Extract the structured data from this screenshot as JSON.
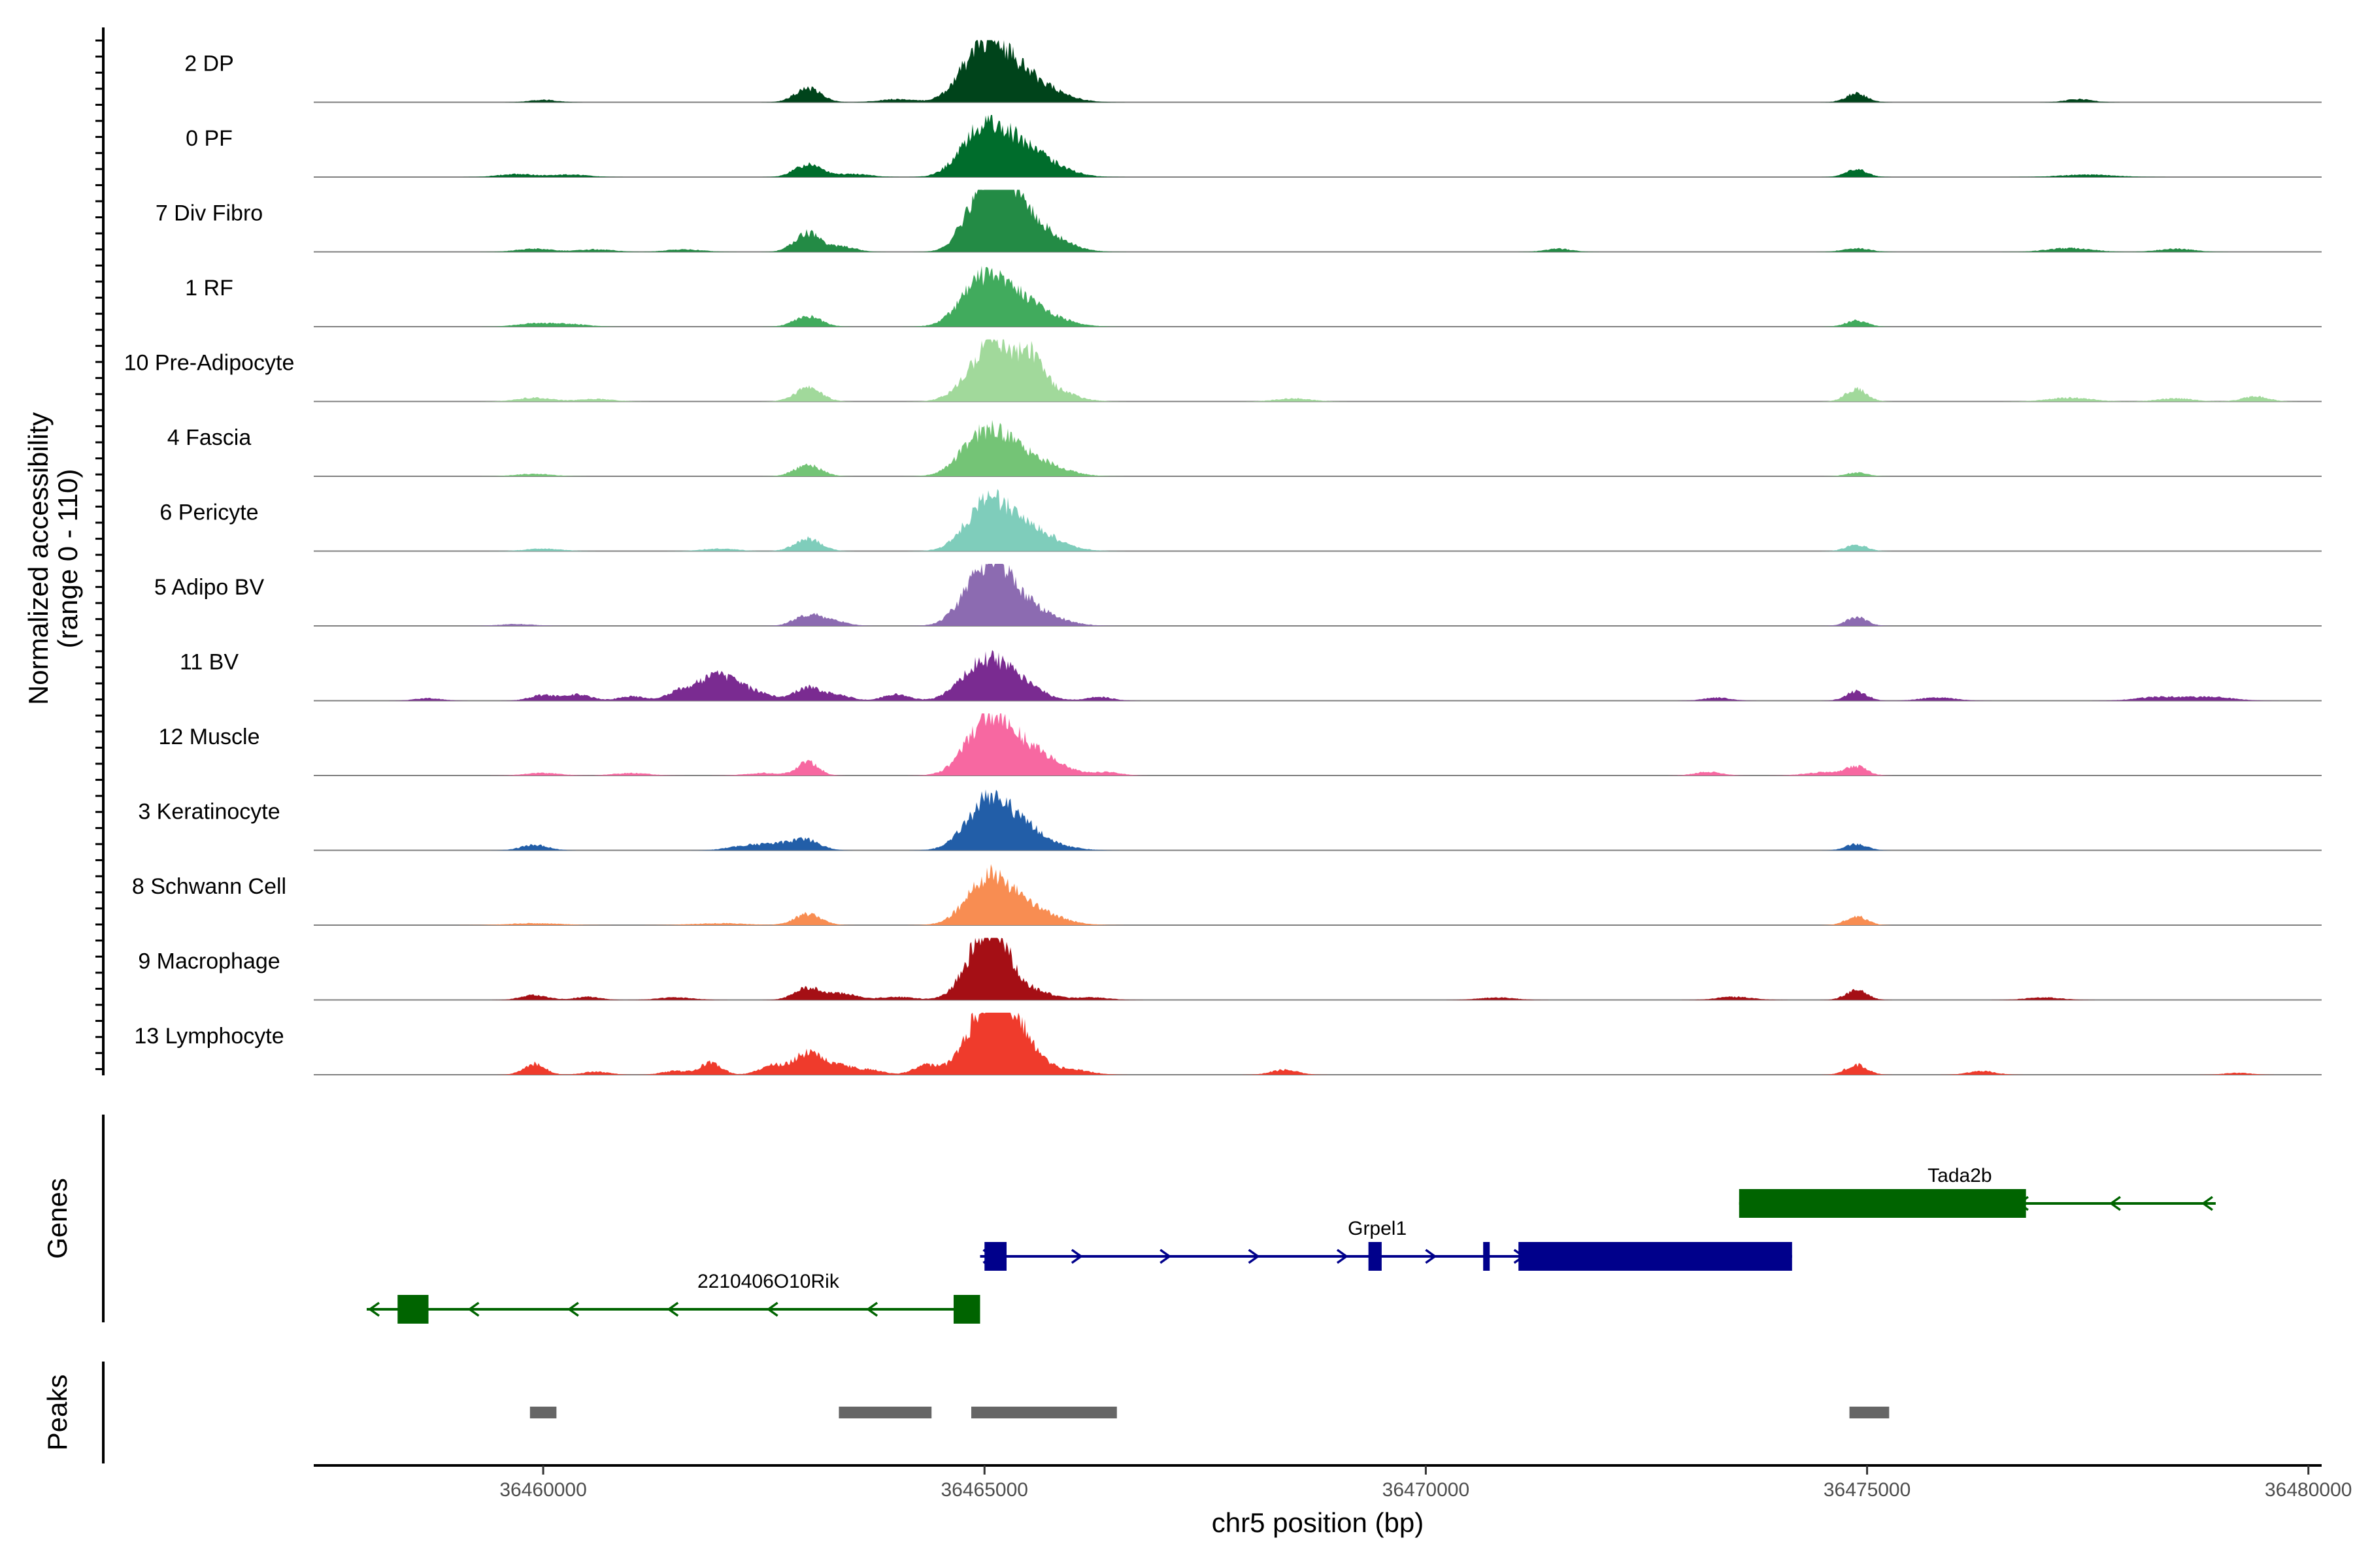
{
  "chart_data": {
    "type": "area",
    "title": "",
    "chromosome": "chr5",
    "xlabel": "chr5 position (bp)",
    "ylabel_line1": "Normalized accessibility",
    "ylabel_line2": "(range 0 - 110)",
    "y_range": [
      0,
      110
    ],
    "x_range": [
      36457400,
      36480150
    ],
    "x_ticks": [
      36460000,
      36465000,
      36470000,
      36475000,
      36480000
    ],
    "x_tick_labels": [
      "36460000",
      "36465000",
      "36470000",
      "36475000",
      "36480000"
    ],
    "tracks": [
      {
        "label": "2 DP",
        "color": "#00441b",
        "peaks": [
          [
            36460000,
            0.04,
            150
          ],
          [
            36463000,
            0.22,
            150
          ],
          [
            36464000,
            0.05,
            200
          ],
          [
            36464900,
            0.62,
            220
          ],
          [
            36465150,
            0.5,
            200
          ],
          [
            36465450,
            0.32,
            220
          ],
          [
            36465750,
            0.13,
            250
          ],
          [
            36474880,
            0.14,
            120
          ],
          [
            36477400,
            0.05,
            150
          ]
        ]
      },
      {
        "label": "0 PF",
        "color": "#006d2c",
        "peaks": [
          [
            36459700,
            0.05,
            200
          ],
          [
            36460300,
            0.04,
            200
          ],
          [
            36463000,
            0.2,
            150
          ],
          [
            36463500,
            0.05,
            200
          ],
          [
            36464900,
            0.55,
            220
          ],
          [
            36465150,
            0.45,
            200
          ],
          [
            36465450,
            0.33,
            220
          ],
          [
            36465750,
            0.15,
            250
          ],
          [
            36474880,
            0.12,
            120
          ],
          [
            36477500,
            0.04,
            300
          ]
        ]
      },
      {
        "label": "7 Div Fibro",
        "color": "#238b45",
        "peaks": [
          [
            36459900,
            0.05,
            200
          ],
          [
            36460600,
            0.04,
            200
          ],
          [
            36461600,
            0.04,
            200
          ],
          [
            36463000,
            0.3,
            150
          ],
          [
            36463400,
            0.08,
            150
          ],
          [
            36464950,
            0.72,
            200
          ],
          [
            36465200,
            0.78,
            200
          ],
          [
            36465450,
            0.38,
            220
          ],
          [
            36465750,
            0.18,
            250
          ],
          [
            36471500,
            0.05,
            150
          ],
          [
            36474880,
            0.06,
            150
          ],
          [
            36477300,
            0.06,
            250
          ],
          [
            36478500,
            0.05,
            200
          ]
        ]
      },
      {
        "label": "1 RF",
        "color": "#41ab5d",
        "peaks": [
          [
            36459900,
            0.05,
            200
          ],
          [
            36460300,
            0.04,
            200
          ],
          [
            36463000,
            0.17,
            150
          ],
          [
            36464900,
            0.52,
            220
          ],
          [
            36465150,
            0.45,
            200
          ],
          [
            36465450,
            0.28,
            220
          ],
          [
            36465750,
            0.12,
            250
          ],
          [
            36474880,
            0.1,
            120
          ]
        ]
      },
      {
        "label": "10 Pre-Adipocyte",
        "color": "#a1d99b",
        "peaks": [
          [
            36459900,
            0.06,
            200
          ],
          [
            36460600,
            0.04,
            200
          ],
          [
            36463000,
            0.22,
            150
          ],
          [
            36464950,
            0.55,
            220
          ],
          [
            36465150,
            0.6,
            150
          ],
          [
            36465500,
            0.66,
            150
          ],
          [
            36465750,
            0.18,
            250
          ],
          [
            36468500,
            0.05,
            200
          ],
          [
            36474880,
            0.2,
            120
          ],
          [
            36477300,
            0.06,
            250
          ],
          [
            36478500,
            0.05,
            200
          ],
          [
            36479400,
            0.08,
            150
          ]
        ]
      },
      {
        "label": "4 Fascia",
        "color": "#74c476",
        "peaks": [
          [
            36459900,
            0.04,
            200
          ],
          [
            36463000,
            0.18,
            150
          ],
          [
            36464900,
            0.46,
            220
          ],
          [
            36465150,
            0.4,
            200
          ],
          [
            36465450,
            0.25,
            220
          ],
          [
            36465750,
            0.12,
            250
          ],
          [
            36474880,
            0.06,
            120
          ]
        ]
      },
      {
        "label": "6 Pericyte",
        "color": "#7fcdbb",
        "peaks": [
          [
            36460000,
            0.04,
            200
          ],
          [
            36462000,
            0.04,
            200
          ],
          [
            36463000,
            0.2,
            150
          ],
          [
            36464950,
            0.5,
            220
          ],
          [
            36465150,
            0.45,
            200
          ],
          [
            36465500,
            0.3,
            200
          ],
          [
            36465750,
            0.12,
            250
          ],
          [
            36474880,
            0.1,
            120
          ]
        ]
      },
      {
        "label": "5 Adipo BV",
        "color": "#8c6bb1",
        "peaks": [
          [
            36459700,
            0.03,
            200
          ],
          [
            36463000,
            0.18,
            150
          ],
          [
            36463300,
            0.08,
            150
          ],
          [
            36464950,
            0.7,
            220
          ],
          [
            36465200,
            0.45,
            200
          ],
          [
            36465450,
            0.22,
            220
          ],
          [
            36465750,
            0.1,
            250
          ],
          [
            36474880,
            0.14,
            120
          ]
        ]
      },
      {
        "label": "11 BV",
        "color": "#7a2b91",
        "peaks": [
          [
            36458700,
            0.04,
            150
          ],
          [
            36460000,
            0.09,
            150
          ],
          [
            36460400,
            0.1,
            150
          ],
          [
            36461000,
            0.07,
            150
          ],
          [
            36461500,
            0.08,
            150
          ],
          [
            36461800,
            0.22,
            200
          ],
          [
            36462100,
            0.3,
            220
          ],
          [
            36462500,
            0.07,
            150
          ],
          [
            36463000,
            0.22,
            150
          ],
          [
            36463350,
            0.08,
            150
          ],
          [
            36464000,
            0.1,
            150
          ],
          [
            36464900,
            0.42,
            220
          ],
          [
            36465150,
            0.34,
            200
          ],
          [
            36465450,
            0.22,
            220
          ],
          [
            36466300,
            0.06,
            150
          ],
          [
            36473300,
            0.05,
            150
          ],
          [
            36474880,
            0.15,
            120
          ],
          [
            36475800,
            0.05,
            200
          ],
          [
            36478300,
            0.06,
            250
          ],
          [
            36478900,
            0.06,
            250
          ]
        ]
      },
      {
        "label": "12 Muscle",
        "color": "#f768a1",
        "peaks": [
          [
            36460000,
            0.04,
            200
          ],
          [
            36461000,
            0.04,
            200
          ],
          [
            36462500,
            0.04,
            200
          ],
          [
            36463000,
            0.22,
            120
          ],
          [
            36464950,
            0.55,
            220
          ],
          [
            36465150,
            0.45,
            200
          ],
          [
            36465450,
            0.35,
            220
          ],
          [
            36465750,
            0.15,
            250
          ],
          [
            36466400,
            0.05,
            150
          ],
          [
            36473200,
            0.06,
            150
          ],
          [
            36474880,
            0.14,
            120
          ],
          [
            36474500,
            0.05,
            200
          ]
        ]
      },
      {
        "label": "3 Keratinocyte",
        "color": "#225ea8",
        "peaks": [
          [
            36459900,
            0.09,
            150
          ],
          [
            36462300,
            0.07,
            200
          ],
          [
            36462700,
            0.1,
            200
          ],
          [
            36463000,
            0.14,
            150
          ],
          [
            36464950,
            0.5,
            220
          ],
          [
            36465150,
            0.4,
            200
          ],
          [
            36465450,
            0.3,
            200
          ],
          [
            36465750,
            0.08,
            250
          ],
          [
            36474880,
            0.1,
            120
          ]
        ]
      },
      {
        "label": "8 Schwann Cell",
        "color": "#f88d52",
        "peaks": [
          [
            36459900,
            0.03,
            300
          ],
          [
            36462000,
            0.03,
            300
          ],
          [
            36463000,
            0.18,
            150
          ],
          [
            36464950,
            0.45,
            220
          ],
          [
            36465150,
            0.4,
            200
          ],
          [
            36465450,
            0.22,
            220
          ],
          [
            36465750,
            0.1,
            250
          ],
          [
            36474880,
            0.14,
            120
          ]
        ]
      },
      {
        "label": "9 Macrophage",
        "color": "#a50f15",
        "peaks": [
          [
            36459900,
            0.08,
            150
          ],
          [
            36460500,
            0.05,
            150
          ],
          [
            36461500,
            0.04,
            200
          ],
          [
            36463000,
            0.2,
            150
          ],
          [
            36463400,
            0.1,
            150
          ],
          [
            36464000,
            0.05,
            200
          ],
          [
            36464950,
            0.72,
            200
          ],
          [
            36465150,
            0.66,
            180
          ],
          [
            36465550,
            0.15,
            200
          ],
          [
            36466200,
            0.04,
            200
          ],
          [
            36470800,
            0.04,
            200
          ],
          [
            36473500,
            0.05,
            200
          ],
          [
            36474880,
            0.16,
            120
          ],
          [
            36477000,
            0.04,
            200
          ]
        ]
      },
      {
        "label": "13 Lymphocyte",
        "color": "#ef3b2c",
        "peaks": [
          [
            36459900,
            0.18,
            120
          ],
          [
            36460600,
            0.05,
            150
          ],
          [
            36461500,
            0.06,
            150
          ],
          [
            36461900,
            0.2,
            120
          ],
          [
            36462600,
            0.15,
            150
          ],
          [
            36463000,
            0.35,
            150
          ],
          [
            36463350,
            0.15,
            150
          ],
          [
            36463700,
            0.08,
            150
          ],
          [
            36464350,
            0.15,
            150
          ],
          [
            36464950,
            0.78,
            200
          ],
          [
            36465200,
            0.72,
            180
          ],
          [
            36465450,
            0.45,
            200
          ],
          [
            36466000,
            0.08,
            200
          ],
          [
            36468400,
            0.08,
            150
          ],
          [
            36474880,
            0.16,
            120
          ],
          [
            36476300,
            0.06,
            150
          ],
          [
            36479200,
            0.03,
            150
          ]
        ]
      }
    ],
    "genes": [
      {
        "name": "2210406O10Rik",
        "strand": "-",
        "color": "#006400",
        "start": 36458000,
        "end": 36464950,
        "row": 2,
        "exons": [
          [
            36458350,
            36458700
          ],
          [
            36464650,
            36464950
          ]
        ],
        "label_pos": 36462550
      },
      {
        "name": "Grpel1",
        "strand": "+",
        "color": "#00008b",
        "start": 36464950,
        "end": 36474150,
        "row": 1,
        "exons": [
          [
            36465000,
            36465250
          ],
          [
            36469350,
            36469500
          ],
          [
            36470650,
            36470720
          ],
          [
            36471050,
            36474150
          ]
        ],
        "label_pos": 36469450
      },
      {
        "name": "Tada2b",
        "strand": "-",
        "color": "#006400",
        "start": 36473550,
        "end": 36478950,
        "row": 0,
        "exons": [
          [
            36473550,
            36476800
          ]
        ],
        "label_pos": 36476050
      }
    ],
    "peaks_track": [
      [
        36459850,
        36460150
      ],
      [
        36463350,
        36464400
      ],
      [
        36464850,
        36466500
      ],
      [
        36474800,
        36475250
      ]
    ],
    "panel_labels": {
      "genes": "Genes",
      "peaks": "Peaks"
    }
  }
}
